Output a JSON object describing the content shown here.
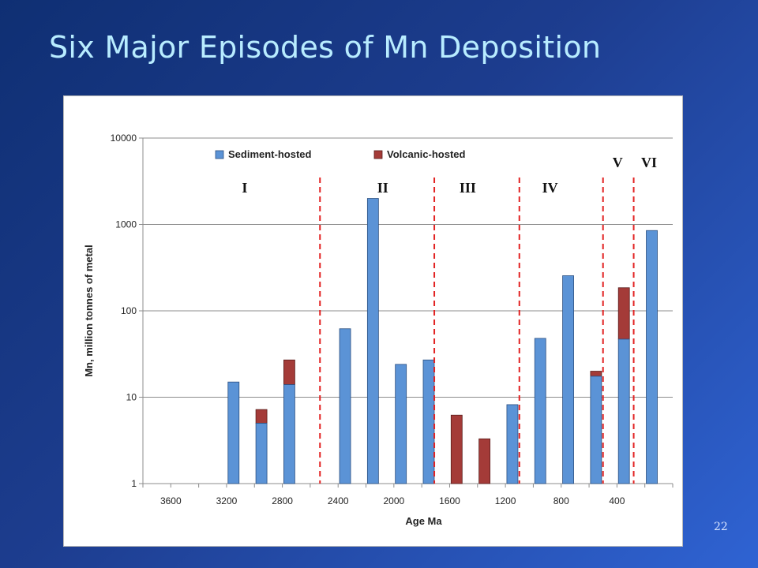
{
  "slide": {
    "title": "Six Major Episodes of Mn Deposition",
    "page_number": "22"
  },
  "colors": {
    "sediment": "#5b93d6",
    "volcanic": "#a43b38",
    "episode_line": "#e22222",
    "background_top": "#0f2f73",
    "background_bottom": "#2f63d3",
    "title": "#b8ecff"
  },
  "chart_data": {
    "type": "bar",
    "stacked": true,
    "log_y": true,
    "xlabel": "Age Ma",
    "ylabel": "Mn, million tonnes of metal",
    "ylim": [
      1,
      10000
    ],
    "y_ticks": [
      "1",
      "10",
      "100",
      "1000",
      "10000"
    ],
    "x_ticks": [
      "3600",
      "3200",
      "2800",
      "2400",
      "2000",
      "1600",
      "1200",
      "800",
      "400"
    ],
    "x_ticks_numeric": [
      3600,
      3200,
      2800,
      2400,
      2000,
      1600,
      1200,
      800,
      400
    ],
    "xlim": [
      3800,
      0
    ],
    "grid": "horizontal",
    "legend_position": "top",
    "series": [
      {
        "name": "Sediment-hosted",
        "color": "#5b93d6",
        "points": [
          {
            "x": 3150,
            "y": 15
          },
          {
            "x": 2950,
            "y": 5
          },
          {
            "x": 2750,
            "y": 14
          },
          {
            "x": 2350,
            "y": 62
          },
          {
            "x": 2150,
            "y": 2000
          },
          {
            "x": 1950,
            "y": 24
          },
          {
            "x": 1750,
            "y": 27
          },
          {
            "x": 1150,
            "y": 8.2
          },
          {
            "x": 950,
            "y": 48
          },
          {
            "x": 750,
            "y": 255
          },
          {
            "x": 550,
            "y": 17.5
          },
          {
            "x": 350,
            "y": 47
          },
          {
            "x": 150,
            "y": 850
          }
        ]
      },
      {
        "name": "Volcanic-hosted",
        "color": "#a43b38",
        "points": [
          {
            "x": 2950,
            "y": 7.2
          },
          {
            "x": 2750,
            "y": 27
          },
          {
            "x": 1550,
            "y": 6.2
          },
          {
            "x": 1350,
            "y": 3.3
          },
          {
            "x": 550,
            "y": 20
          },
          {
            "x": 350,
            "y": 185
          }
        ]
      }
    ],
    "episode_boundaries": [
      2530,
      1710,
      1100,
      500,
      280
    ],
    "episode_labels": [
      {
        "label": "I",
        "x": 3070
      },
      {
        "label": "II",
        "x": 2080
      },
      {
        "label": "III",
        "x": 1470
      },
      {
        "label": "IV",
        "x": 880
      },
      {
        "label": "V",
        "x": 395
      },
      {
        "label": "VI",
        "x": 170
      }
    ]
  }
}
